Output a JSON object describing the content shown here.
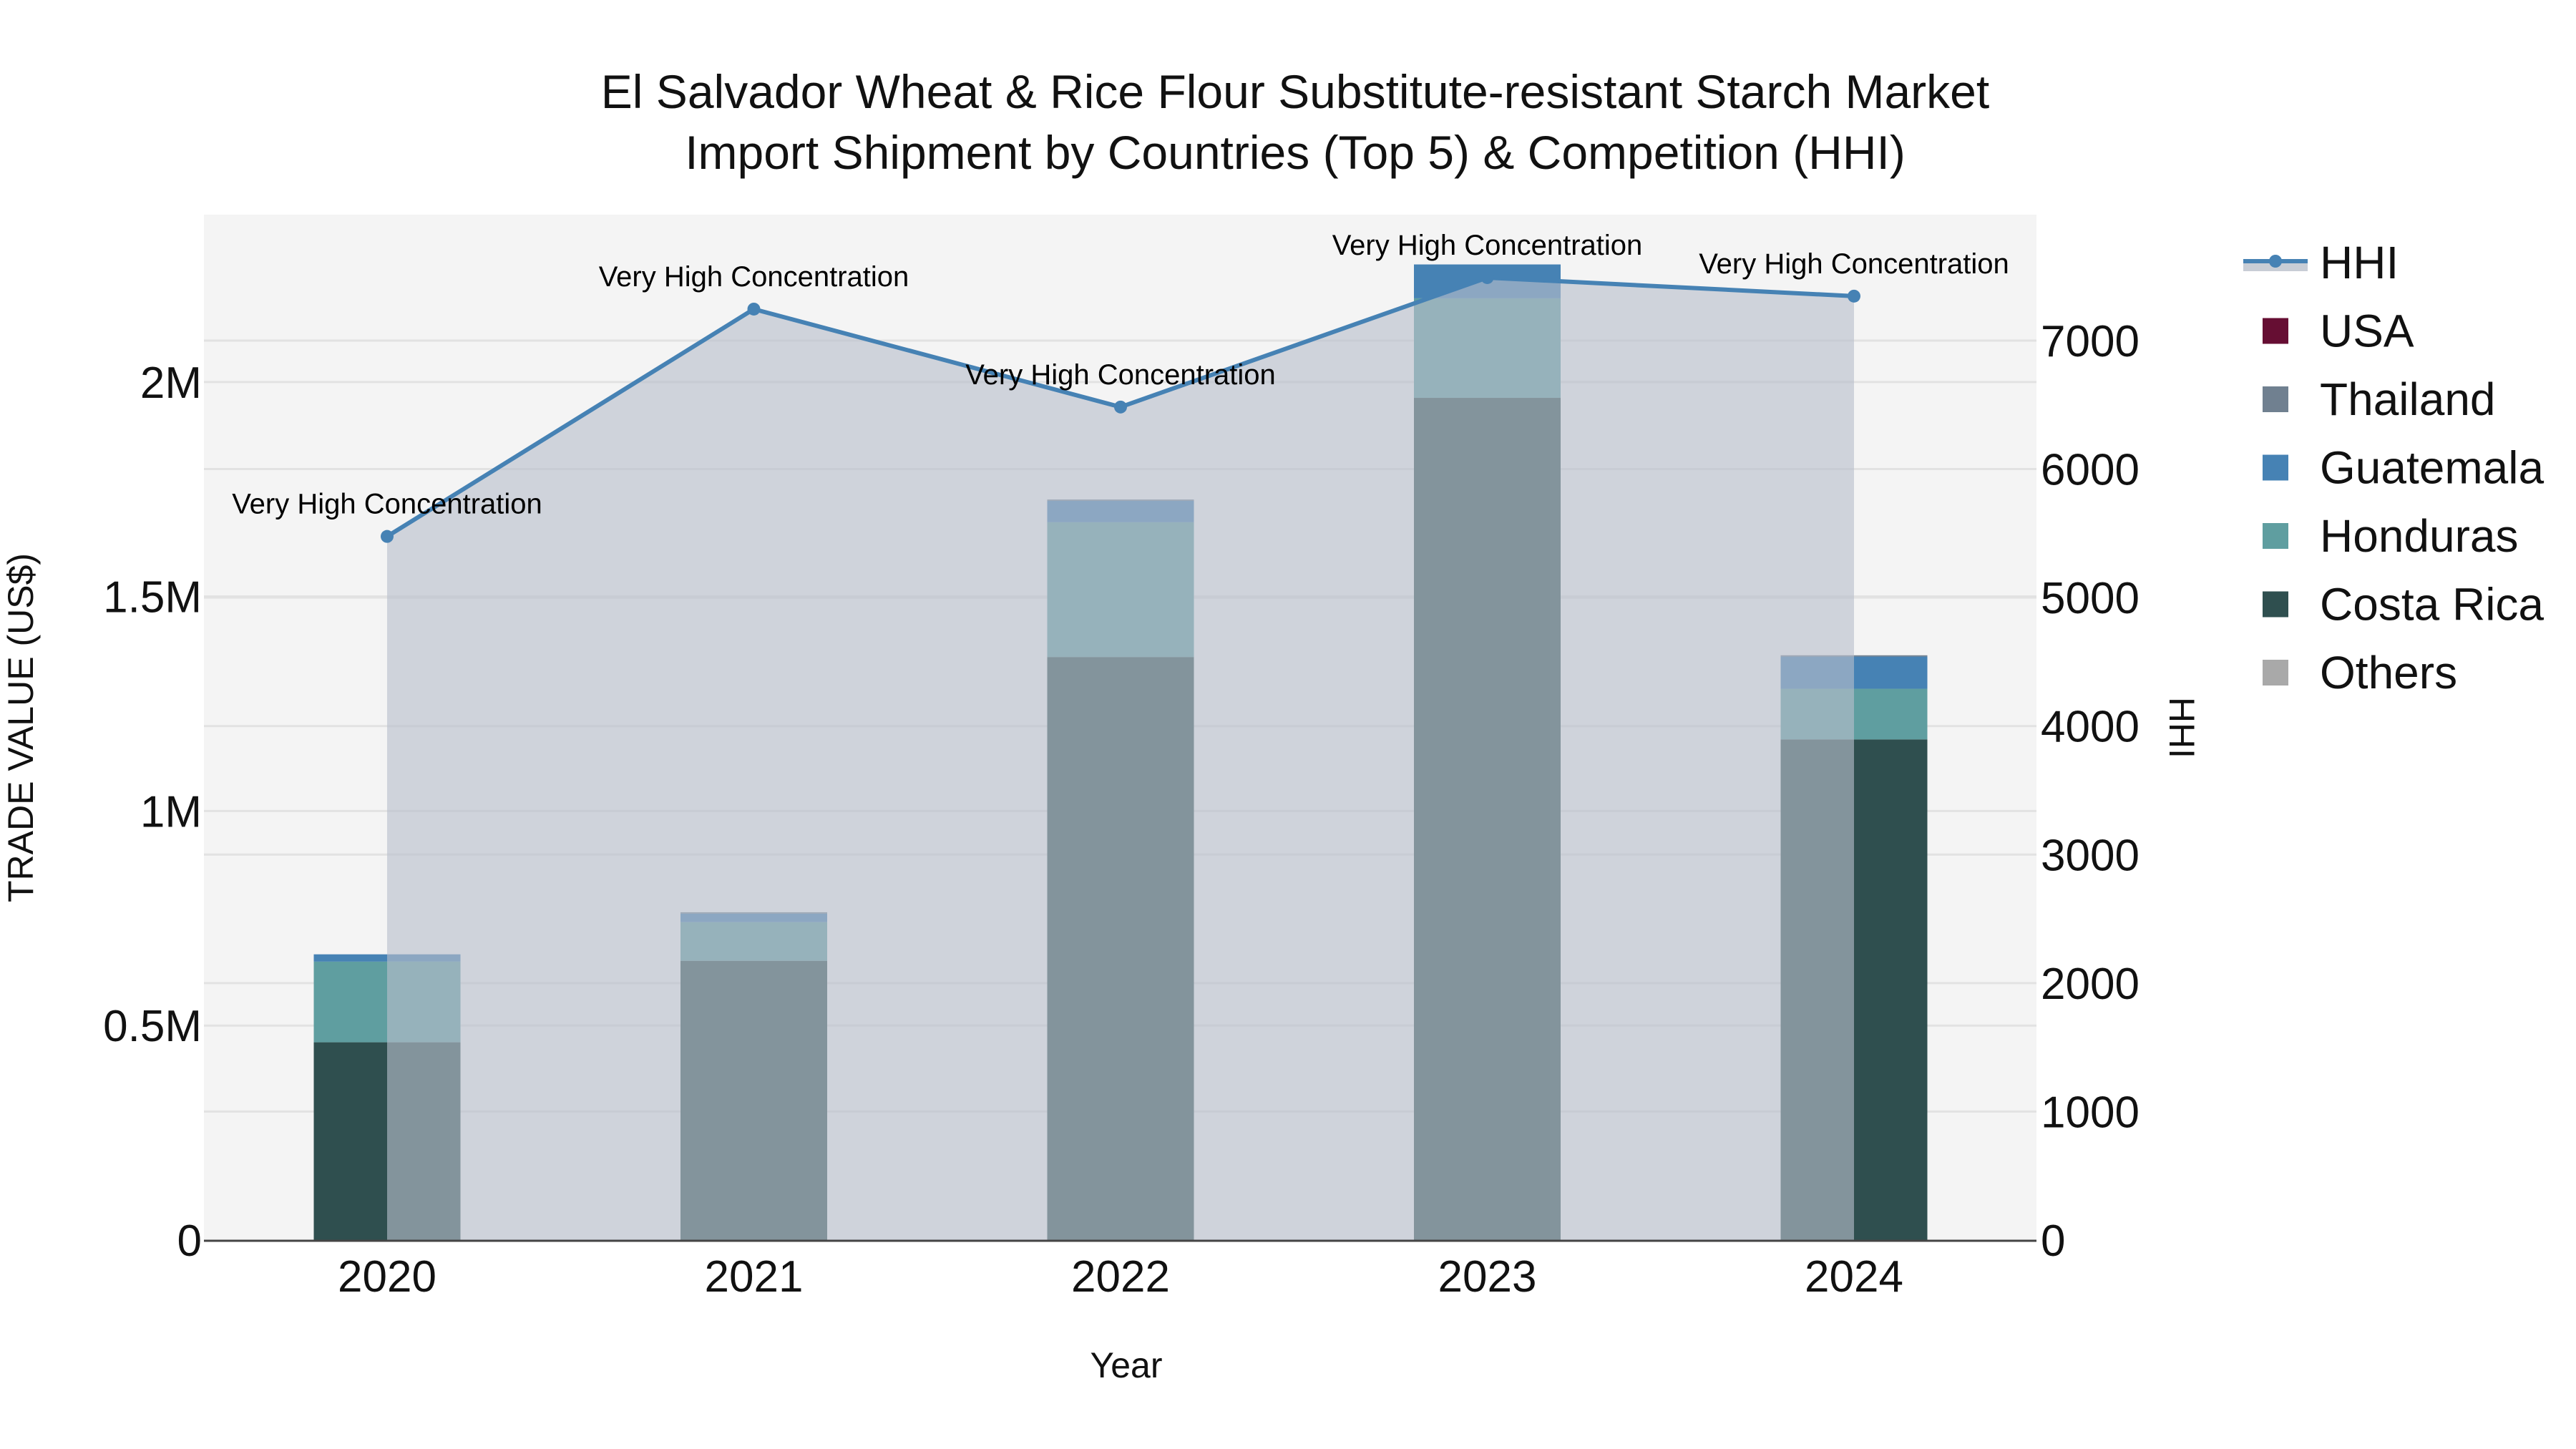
{
  "chart_data": {
    "type": "bar",
    "title": "El Salvador Wheat & Rice Flour Substitute-resistant Starch Market",
    "subtitle": "Import Shipment by Countries (Top 5) & Competition (HHI)",
    "xlabel": "Year",
    "ylabel": "TRADE VALUE (US$)",
    "y2label": "HHI",
    "categories": [
      "2020",
      "2021",
      "2022",
      "2023",
      "2024"
    ],
    "stacked": true,
    "series": [
      {
        "name": "Costa Rica",
        "color": "#2f4f4f",
        "values": [
          461000,
          651000,
          1359000,
          1963000,
          1167000
        ]
      },
      {
        "name": "Honduras",
        "color": "#5f9ea0",
        "values": [
          188000,
          90000,
          314000,
          232000,
          118000
        ]
      },
      {
        "name": "Guatemala",
        "color": "#4682b4",
        "values": [
          17000,
          20000,
          50000,
          79000,
          75000
        ]
      },
      {
        "name": "Thailand",
        "color": "#708090",
        "values": [
          0,
          3000,
          3000,
          0,
          3000
        ]
      },
      {
        "name": "USA",
        "color": "#660e33",
        "values": [
          0,
          0,
          0,
          0,
          0
        ]
      },
      {
        "name": "Others",
        "color": "#a9a9a9",
        "values": [
          0,
          0,
          0,
          0,
          0
        ]
      }
    ],
    "line_series": {
      "name": "HHI",
      "axis": "y2",
      "color": "#4682b4",
      "fill_color": "#b8bfcb",
      "values": [
        5476,
        7245,
        6483,
        7490,
        7346
      ],
      "annotations": [
        "Very High Concentration",
        "Very High Concentration",
        "Very High Concentration",
        "Very High Concentration",
        "Very High Concentration"
      ]
    },
    "ylim": [
      0,
      2390000
    ],
    "y_ticks": [
      0,
      500000,
      1000000,
      1500000,
      2000000
    ],
    "y_tick_labels": [
      "0",
      "0.5M",
      "1M",
      "1.5M",
      "2M"
    ],
    "y2lim": [
      0,
      7980
    ],
    "y2_ticks": [
      0,
      1000,
      2000,
      3000,
      4000,
      5000,
      6000,
      7000
    ],
    "y2_tick_labels": [
      "0",
      "1000",
      "2000",
      "3000",
      "4000",
      "5000",
      "6000",
      "7000"
    ],
    "grid": true,
    "legend_position": "right",
    "legend": [
      {
        "label": "HHI",
        "type": "line",
        "color": "#4682b4"
      },
      {
        "label": "USA",
        "type": "box",
        "color": "#660e33"
      },
      {
        "label": "Thailand",
        "type": "box",
        "color": "#708090"
      },
      {
        "label": "Guatemala",
        "type": "box",
        "color": "#4682b4"
      },
      {
        "label": "Honduras",
        "type": "box",
        "color": "#5f9ea0"
      },
      {
        "label": "Costa Rica",
        "type": "box",
        "color": "#2f4f4f"
      },
      {
        "label": "Others",
        "type": "box",
        "color": "#a9a9a9"
      }
    ],
    "colors": {
      "plot_bg": "#f4f4f4",
      "paper_bg": "#ffffff",
      "axis_line": "#444444"
    }
  }
}
